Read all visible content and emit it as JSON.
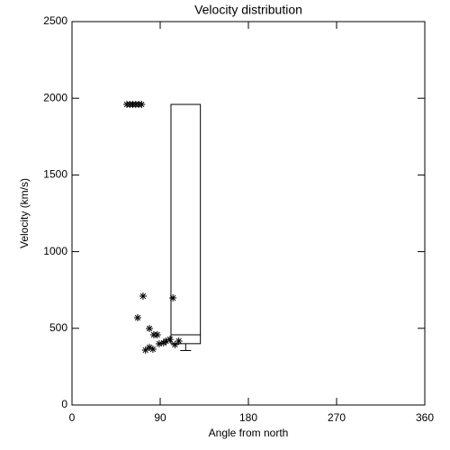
{
  "chart_data": {
    "type": "scatter",
    "title": "Velocity distribution",
    "x_label": "Angle from north",
    "y_label": "Velocity (km/s)",
    "x": [
      56,
      59,
      62,
      65,
      68,
      71,
      72.5,
      103,
      67,
      79,
      83.5,
      87,
      75,
      79,
      82.6,
      89,
      93.5,
      96,
      100,
      105,
      109
    ],
    "y": [
      1960,
      1960,
      1960,
      1960,
      1960,
      1960,
      710,
      698,
      569,
      499,
      458,
      458,
      358,
      376,
      364,
      399,
      405,
      417,
      428,
      393,
      417
    ],
    "color": "#000000",
    "box": {
      "x_range": [
        101,
        131
      ],
      "q3": 1960,
      "median": 458,
      "q1": 400,
      "whisker_low": 355
    },
    "xlim": [
      0,
      360
    ],
    "xticks": [
      0,
      90,
      180,
      270,
      360
    ],
    "ylim": [
      0,
      2500
    ],
    "yticks": [
      0,
      500,
      1000,
      1500,
      2000,
      2500
    ]
  }
}
